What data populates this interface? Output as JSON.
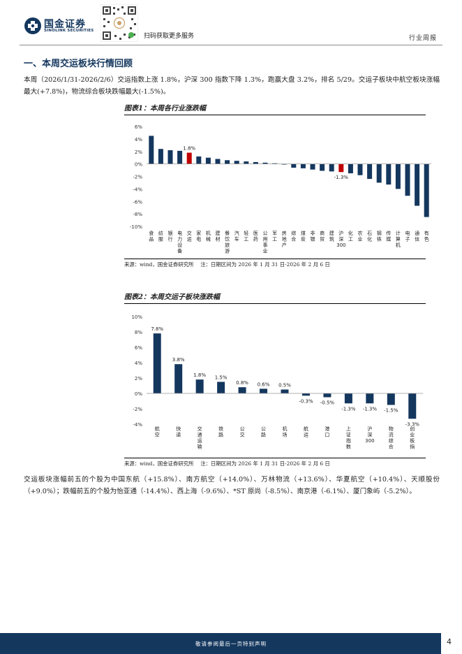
{
  "header": {
    "brand_cn": "国金证券",
    "brand_en": "SINOLINK SECURITIES",
    "qr_caption": "扫码获取更多服务",
    "report_type": "行业周报"
  },
  "section_title": "一、本周交运板块行情回顾",
  "paragraph1": "本周（2026/1/31-2026/2/6）交运指数上涨 1.8%，沪深 300 指数下降 1.3%，跑赢大盘 3.2%，排名 5/29。交运子板块中航空板块涨幅最大(+7.8%)，物流综合板块跌幅最大(-1.5%)。",
  "figure1": {
    "title": "图表1：本周各行业涨跌幅",
    "source": "来源：wind，国金证券研究所　 注：日期区间为 2026 年 1 月 31 日-2026 年 2 月 6 日"
  },
  "figure2": {
    "title": "图表2：本周交运子板块涨跌幅",
    "source": "来源：wind，国金证券研究所　 注：日期区间为 2026 年 1 月 31 日-2026 年 2 月 6 日"
  },
  "paragraph2": "交运板块涨幅前五的个股为中国东航（+15.8%）、南方航空（+14.0%）、万林物流（+13.6%）、华夏航空（+10.4%）、天顺股份（+9.0%）；跌幅前五的个股为怡亚通（-14.4%）、西上海（-9.6%）、*ST 原尚（-8.5%）、南京港（-6.1%）、厦门象屿（-5.2%）。",
  "footer": {
    "disclaimer": "敬请参阅最后一页特别声明",
    "page": "4"
  },
  "colors": {
    "navy": "#14375e",
    "highlight_red": "#c00000"
  },
  "chart_data": [
    {
      "type": "bar",
      "title": "图表1：本周各行业涨跌幅",
      "ylim": [
        -10,
        6
      ],
      "yticks": [
        "6%",
        "4%",
        "2%",
        "0%",
        "-2%",
        "-4%",
        "-6%",
        "-8%",
        "-10%"
      ],
      "grid": false,
      "legend": "none",
      "categories": [
        "食品",
        "纺服",
        "银行",
        "电力设备",
        "交运",
        "家电",
        "机械",
        "建材",
        "餐饮旅游",
        "汽车",
        "轻工",
        "医药",
        "公用事业",
        "军工",
        "房地产",
        "综合",
        "煤炭",
        "非银",
        "商贸",
        "建筑",
        "沪深300",
        "化工",
        "农业",
        "石化",
        "钢铁",
        "传媒",
        "计算机",
        "电子",
        "通信",
        "有色"
      ],
      "values": [
        4.5,
        2.4,
        2.2,
        2.1,
        1.8,
        1.2,
        1.0,
        0.8,
        0.6,
        0.5,
        0.4,
        0.3,
        0.2,
        0.1,
        -0.1,
        -0.6,
        -0.7,
        -0.9,
        -1.1,
        -1.2,
        -1.3,
        -1.5,
        -1.8,
        -2.4,
        -3.0,
        -3.3,
        -4.0,
        -5.1,
        -6.7,
        -8.5
      ],
      "labels": {
        "4": "1.8%",
        "20": "-1.3%"
      },
      "highlight": [
        4,
        20
      ]
    },
    {
      "type": "bar",
      "title": "图表2：本周交运子板块涨跌幅",
      "ylim": [
        -4,
        10
      ],
      "yticks": [
        "10%",
        "8%",
        "6%",
        "4%",
        "2%",
        "0%",
        "-2%",
        "-4%"
      ],
      "grid": false,
      "legend": "none",
      "categories": [
        "航空",
        "快递",
        "交通运输",
        "铁路",
        "公交",
        "公路",
        "机场",
        "航运",
        "港口",
        "上证指数",
        "沪深300",
        "物流综合",
        "创业板指"
      ],
      "values": [
        7.8,
        3.8,
        1.8,
        1.5,
        0.8,
        0.6,
        0.5,
        -0.3,
        -0.5,
        -1.3,
        -1.3,
        -1.5,
        -3.3
      ],
      "labels": [
        "7.8%",
        "3.8%",
        "1.8%",
        "1.5%",
        "0.8%",
        "0.6%",
        "0.5%",
        "-0.3%",
        "-0.5%",
        "-1.3%",
        "-1.3%",
        "-1.5%",
        "-3.3%"
      ]
    }
  ]
}
